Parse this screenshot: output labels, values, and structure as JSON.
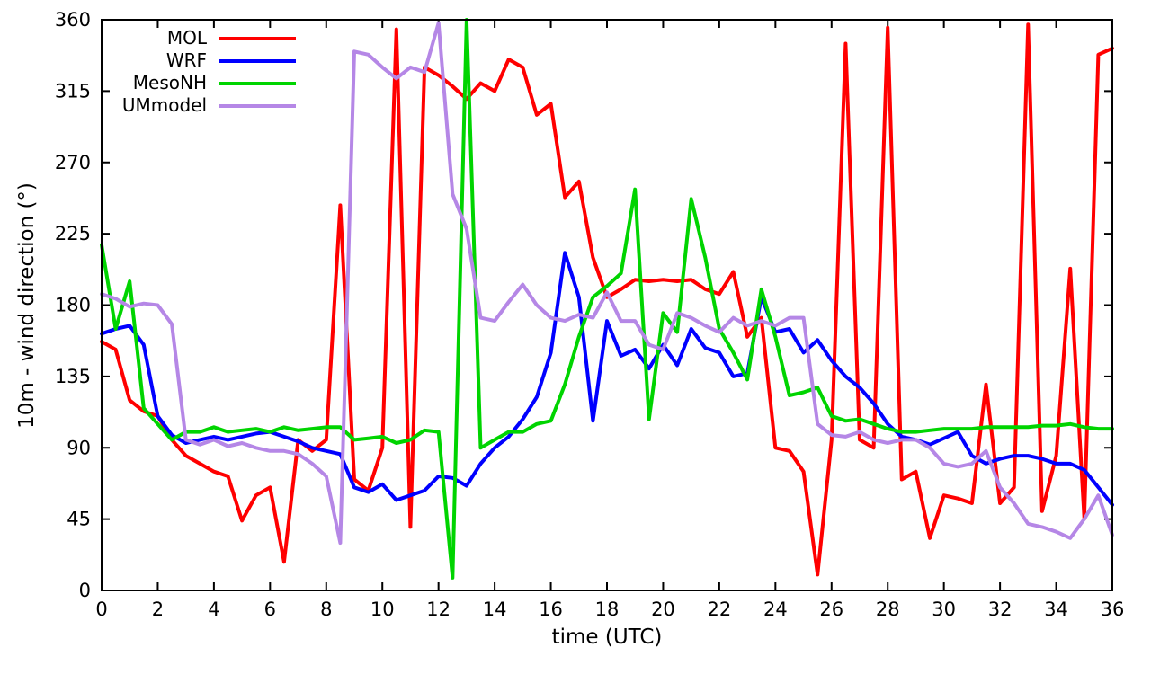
{
  "chart_data": {
    "type": "line",
    "title": "",
    "xlabel": "time (UTC)",
    "ylabel": "10m - wind direction (°)",
    "xlim": [
      0,
      36
    ],
    "ylim": [
      0,
      360
    ],
    "xticks": [
      0,
      2,
      4,
      6,
      8,
      10,
      12,
      14,
      16,
      18,
      20,
      22,
      24,
      26,
      28,
      30,
      32,
      34,
      36
    ],
    "yticks": [
      0,
      45,
      90,
      135,
      180,
      225,
      270,
      315,
      360
    ],
    "grid": false,
    "legend_position": "top-left",
    "x_start": 0,
    "x_step": 0.5,
    "series": [
      {
        "name": "MOL",
        "color": "#ff0000",
        "values": [
          157,
          152,
          120,
          113,
          110,
          95,
          85,
          80,
          75,
          72,
          44,
          60,
          65,
          18,
          95,
          88,
          95,
          243,
          70,
          63,
          90,
          354,
          40,
          330,
          325,
          318,
          310,
          320,
          315,
          335,
          330,
          300,
          307,
          248,
          258,
          210,
          185,
          190,
          196,
          195,
          196,
          195,
          196,
          190,
          187,
          201,
          160,
          172,
          90,
          88,
          75,
          10,
          95,
          345,
          95,
          90,
          355,
          70,
          75,
          33,
          60,
          58,
          55,
          130,
          55,
          65,
          357,
          50,
          85,
          203,
          45,
          338,
          342
        ]
      },
      {
        "name": "WRF",
        "color": "#0000ff",
        "values": [
          162,
          165,
          167,
          155,
          110,
          98,
          93,
          95,
          97,
          95,
          97,
          99,
          100,
          97,
          94,
          90,
          88,
          86,
          65,
          62,
          67,
          57,
          60,
          63,
          72,
          71,
          66,
          80,
          90,
          97,
          108,
          122,
          150,
          213,
          185,
          107,
          170,
          148,
          152,
          140,
          155,
          142,
          165,
          153,
          150,
          135,
          137,
          185,
          163,
          165,
          150,
          158,
          145,
          135,
          128,
          118,
          105,
          97,
          95,
          92,
          96,
          100,
          85,
          80,
          83,
          85,
          85,
          83,
          80,
          80,
          76,
          65,
          54
        ]
      },
      {
        "name": "MesoNH",
        "color": "#00d400",
        "values": [
          218,
          165,
          195,
          115,
          105,
          95,
          100,
          100,
          103,
          100,
          101,
          102,
          100,
          103,
          101,
          102,
          103,
          103,
          95,
          96,
          97,
          93,
          95,
          101,
          100,
          8,
          360,
          90,
          95,
          100,
          100,
          105,
          107,
          130,
          160,
          185,
          192,
          200,
          253,
          108,
          175,
          163,
          247,
          210,
          165,
          150,
          133,
          190,
          160,
          123,
          125,
          128,
          110,
          107,
          108,
          105,
          102,
          100,
          100,
          101,
          102,
          102,
          102,
          103,
          103,
          103,
          103,
          104,
          104,
          105,
          103,
          102,
          102
        ]
      },
      {
        "name": "UMmodel",
        "color": "#b587e6",
        "values": [
          187,
          184,
          179,
          181,
          180,
          168,
          95,
          92,
          95,
          91,
          93,
          90,
          88,
          88,
          86,
          80,
          72,
          30,
          340,
          338,
          330,
          323,
          330,
          327,
          358,
          250,
          228,
          172,
          170,
          182,
          193,
          180,
          172,
          170,
          174,
          172,
          188,
          170,
          170,
          155,
          152,
          175,
          172,
          167,
          163,
          172,
          167,
          170,
          167,
          172,
          172,
          105,
          98,
          97,
          100,
          95,
          93,
          95,
          95,
          90,
          80,
          78,
          80,
          88,
          65,
          55,
          42,
          40,
          37,
          33,
          45,
          60,
          35
        ]
      }
    ]
  }
}
